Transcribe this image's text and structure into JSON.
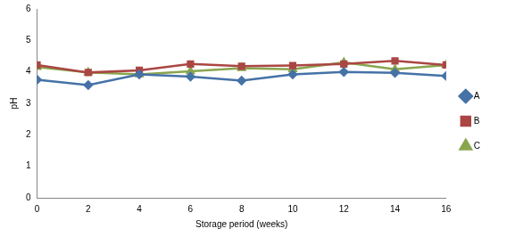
{
  "chart_data": {
    "type": "line",
    "x_label": "Storage period (weeks)",
    "y_label": "pH",
    "x": [
      0,
      2,
      4,
      6,
      8,
      10,
      12,
      14,
      16
    ],
    "series": [
      {
        "name": "A",
        "color": "#4572a7",
        "marker": "diamond",
        "values": [
          3.75,
          3.58,
          3.92,
          3.85,
          3.72,
          3.92,
          4.0,
          3.97,
          3.87
        ]
      },
      {
        "name": "B",
        "color": "#aa4643",
        "marker": "square",
        "values": [
          4.22,
          3.98,
          4.05,
          4.25,
          4.18,
          4.2,
          4.25,
          4.35,
          4.22
        ]
      },
      {
        "name": "C",
        "color": "#89a54e",
        "marker": "triangle",
        "values": [
          4.15,
          3.98,
          3.92,
          4.02,
          4.12,
          4.08,
          4.3,
          4.08,
          4.22
        ]
      }
    ],
    "xlim": [
      0,
      16
    ],
    "xticks": [
      0,
      2,
      4,
      6,
      8,
      10,
      12,
      14,
      16
    ],
    "ylim": [
      0,
      6
    ],
    "yticks": [
      0,
      1,
      2,
      3,
      4,
      5,
      6
    ],
    "grid": false,
    "legend": "right"
  }
}
